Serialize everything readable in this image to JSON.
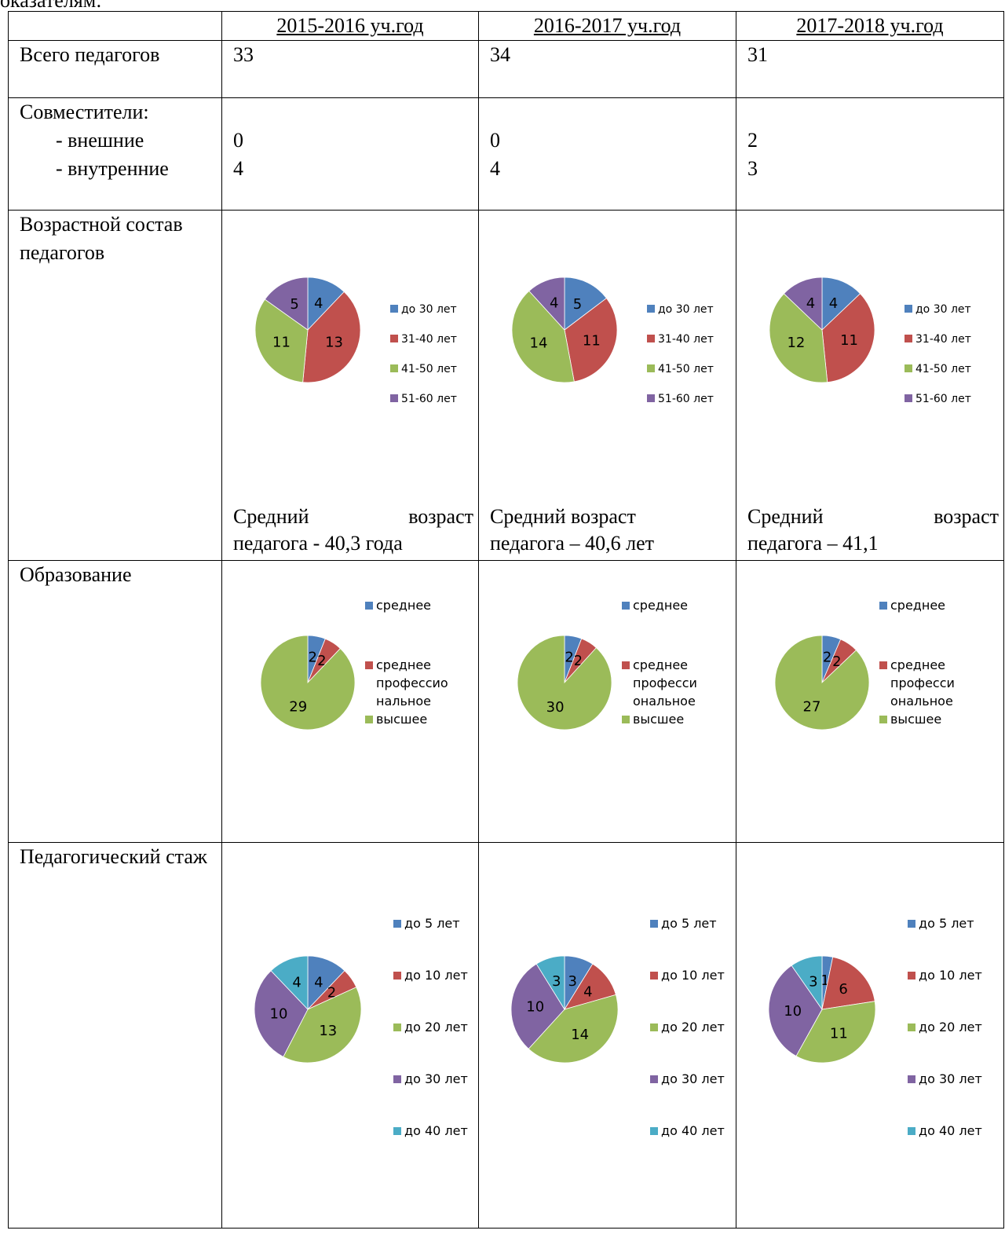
{
  "intro_text": "оказателям:",
  "table": {
    "header": [
      "",
      "2015-2016 уч.год",
      "2016-2017 уч.год",
      "2017-2018 уч.год"
    ],
    "total": {
      "label": "Всего педагогов",
      "values": [
        "33",
        "34",
        "31"
      ]
    },
    "combo": {
      "label": "Совместители:",
      "external_label": "- внешние",
      "internal_label": "- внутренние",
      "external": [
        "0",
        "0",
        "2"
      ],
      "internal": [
        "4",
        "4",
        "3"
      ]
    },
    "age": {
      "label": "Возрастной состав педагогов",
      "avg_line1": [
        [
          "Средний",
          "возраст"
        ],
        [
          "Средний возраст",
          ""
        ],
        [
          "Средний",
          "возраст"
        ]
      ],
      "avg_line2": [
        "педагога  - 40,3 года",
        "педагога – 40,6 лет",
        "педагога – 41,1"
      ]
    },
    "edu": {
      "label": "Образование"
    },
    "exp": {
      "label": "Педагогический стаж"
    }
  },
  "colors": {
    "blue": "#4f81bd",
    "red": "#c0504d",
    "green": "#9bbb59",
    "purple": "#8064a2",
    "teal": "#4bacc6"
  },
  "chart_data": [
    {
      "type": "pie",
      "group": "age",
      "year": "2015-2016 уч.год",
      "categories": [
        "до 30 лет",
        "31-40 лет",
        "41-50 лет",
        "51-60 лет"
      ],
      "values": [
        4,
        13,
        11,
        5
      ]
    },
    {
      "type": "pie",
      "group": "age",
      "year": "2016-2017 уч.год",
      "categories": [
        "до 30 лет",
        "31-40 лет",
        "41-50 лет",
        "51-60 лет"
      ],
      "values": [
        5,
        11,
        14,
        4
      ]
    },
    {
      "type": "pie",
      "group": "age",
      "year": "2017-2018 уч.год",
      "categories": [
        "до 30 лет",
        "31-40 лет",
        "41-50 лет",
        "51-60 лет"
      ],
      "values": [
        4,
        11,
        12,
        4
      ]
    },
    {
      "type": "pie",
      "group": "edu",
      "year": "2015-2016 уч.год",
      "categories": [
        "среднее",
        "среднее профессиональное",
        "высшее"
      ],
      "legend_lines": [
        [
          "среднее"
        ],
        [
          "среднее",
          "профессио",
          "нальное"
        ],
        [
          "высшее"
        ]
      ],
      "values": [
        2,
        2,
        29
      ]
    },
    {
      "type": "pie",
      "group": "edu",
      "year": "2016-2017 уч.год",
      "categories": [
        "среднее",
        "среднее профессиональное",
        "высшее"
      ],
      "legend_lines": [
        [
          "среднее"
        ],
        [
          "среднее",
          "професси",
          "ональное"
        ],
        [
          "высшее"
        ]
      ],
      "values": [
        2,
        2,
        30
      ]
    },
    {
      "type": "pie",
      "group": "edu",
      "year": "2017-2018 уч.год",
      "categories": [
        "среднее",
        "среднее профессиональное",
        "высшее"
      ],
      "legend_lines": [
        [
          "среднее"
        ],
        [
          "среднее",
          "професси",
          "ональное"
        ],
        [
          "высшее"
        ]
      ],
      "values": [
        2,
        2,
        27
      ]
    },
    {
      "type": "pie",
      "group": "exp",
      "year": "2015-2016 уч.год",
      "categories": [
        "до 5 лет",
        "до 10 лет",
        "до 20 лет",
        "до 30 лет",
        "до 40 лет"
      ],
      "values": [
        4,
        2,
        13,
        10,
        4
      ]
    },
    {
      "type": "pie",
      "group": "exp",
      "year": "2016-2017 уч.год",
      "categories": [
        "до 5 лет",
        "до 10 лет",
        "до 20 лет",
        "до 30 лет",
        "до 40 лет"
      ],
      "values": [
        3,
        4,
        14,
        10,
        3
      ]
    },
    {
      "type": "pie",
      "group": "exp",
      "year": "2017-2018 уч.год",
      "categories": [
        "до 5 лет",
        "до 10 лет",
        "до 20 лет",
        "до 30 лет",
        "до 40 лет"
      ],
      "values": [
        1,
        6,
        11,
        10,
        3
      ]
    }
  ]
}
